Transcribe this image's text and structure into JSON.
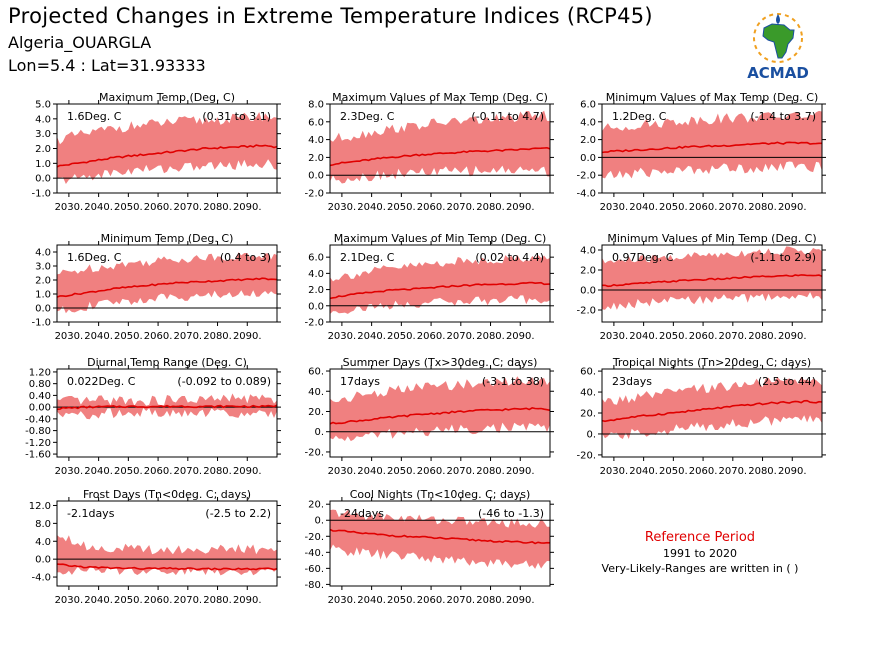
{
  "header": {
    "title": "Projected Changes in Extreme Temperature Indices (RCP45)",
    "location": "Algeria_OUARGLA",
    "coords": "Lon=5.4 : Lat=31.93333"
  },
  "logo": {
    "text": "ACMAD"
  },
  "reference": {
    "title": "Reference Period",
    "years": "1991 to 2020",
    "note": "Very-Likely-Ranges are written in ( )"
  },
  "colors": {
    "band": "#f08080",
    "line": "#e00000",
    "zero": "#000000",
    "logo_green": "#3a9a2a",
    "logo_blue": "#1a4fa0",
    "logo_orange": "#f0a020"
  },
  "chart_data": [
    {
      "type": "area",
      "title": "Maximum Temp (Deg. C)",
      "value": "1.6Deg. C",
      "range": "(0.31 to 3.1)",
      "x_ticks": [
        "2030.",
        "2040.",
        "2050.",
        "2060.",
        "2070.",
        "2080.",
        "2090."
      ],
      "y_ticks": [
        "0.0",
        "1.0",
        "2.0",
        "3.0",
        "4.0",
        "5.0",
        "-1.0"
      ],
      "y_tick_values": [
        0,
        1,
        2,
        3,
        4,
        5,
        -1
      ],
      "ylim": [
        -1,
        5
      ],
      "x": [
        2026,
        2036,
        2046,
        2056,
        2066,
        2076,
        2086,
        2096,
        2100
      ],
      "mean": [
        0.8,
        1.1,
        1.4,
        1.6,
        1.8,
        2.0,
        2.1,
        2.2,
        2.1
      ],
      "low": [
        -0.2,
        0.1,
        0.4,
        0.6,
        0.7,
        0.8,
        0.9,
        1.0,
        0.8
      ],
      "high": [
        2.6,
        3.0,
        3.4,
        3.6,
        3.8,
        3.9,
        4.0,
        4.2,
        4.1
      ]
    },
    {
      "type": "area",
      "title": "Maximum Values of Max Temp (Deg. C)",
      "value": "2.3Deg. C",
      "range": "(-0.11 to 4.7)",
      "x_ticks": [
        "2030.",
        "2040.",
        "2050.",
        "2060.",
        "2070.",
        "2080.",
        "2090."
      ],
      "y_ticks": [
        "-2.0",
        "0.0",
        "2.0",
        "4.0",
        "6.0",
        "8.0"
      ],
      "y_tick_values": [
        -2,
        0,
        2,
        4,
        6,
        8
      ],
      "ylim": [
        -2,
        8
      ],
      "x": [
        2026,
        2036,
        2046,
        2056,
        2066,
        2076,
        2086,
        2096,
        2100
      ],
      "mean": [
        1.2,
        1.6,
        2.0,
        2.3,
        2.5,
        2.7,
        2.8,
        3.0,
        3.0
      ],
      "low": [
        -0.5,
        -0.2,
        0.1,
        0.3,
        0.4,
        0.5,
        0.6,
        0.6,
        0.4
      ],
      "high": [
        4.0,
        4.6,
        5.2,
        5.6,
        6.0,
        6.2,
        6.4,
        6.8,
        6.6
      ]
    },
    {
      "type": "area",
      "title": "Minimum Values of Max Temp (Deg. C)",
      "value": "1.2Deg. C",
      "range": "(-1.4 to 3.7)",
      "x_ticks": [
        "2030.",
        "2040.",
        "2050.",
        "2060.",
        "2070.",
        "2080.",
        "2090."
      ],
      "y_ticks": [
        "-4.0",
        "-2.0",
        "0.0",
        "2.0",
        "4.0",
        "6.0"
      ],
      "y_tick_values": [
        -4,
        -2,
        0,
        2,
        4,
        6
      ],
      "ylim": [
        -4,
        6
      ],
      "x": [
        2026,
        2036,
        2046,
        2056,
        2066,
        2076,
        2086,
        2096,
        2100
      ],
      "mean": [
        0.6,
        0.8,
        1.0,
        1.2,
        1.3,
        1.5,
        1.6,
        1.6,
        1.5
      ],
      "low": [
        -2.2,
        -1.8,
        -1.6,
        -1.4,
        -1.2,
        -1.2,
        -1.0,
        -1.0,
        -1.2
      ],
      "high": [
        3.2,
        3.6,
        3.9,
        4.2,
        4.4,
        4.5,
        4.6,
        4.8,
        4.6
      ]
    },
    {
      "type": "area",
      "title": "Minimum Temp (Deg. C)",
      "value": "1.6Deg. C",
      "range": "(0.4 to 3)",
      "x_ticks": [
        "2030.",
        "2040.",
        "2050.",
        "2060.",
        "2070.",
        "2080.",
        "2090."
      ],
      "y_ticks": [
        "-1.0",
        "0.0",
        "1.0",
        "2.0",
        "3.0",
        "4.0"
      ],
      "y_tick_values": [
        -1,
        0,
        1,
        2,
        3,
        4
      ],
      "ylim": [
        -1,
        4.5
      ],
      "x": [
        2026,
        2036,
        2046,
        2056,
        2066,
        2076,
        2086,
        2096,
        2100
      ],
      "mean": [
        0.8,
        1.1,
        1.4,
        1.6,
        1.8,
        1.9,
        2.0,
        2.1,
        2.0
      ],
      "low": [
        -0.2,
        0.1,
        0.4,
        0.6,
        0.8,
        0.9,
        1.0,
        1.1,
        1.0
      ],
      "high": [
        2.4,
        2.8,
        3.1,
        3.3,
        3.5,
        3.6,
        3.7,
        3.8,
        3.6
      ]
    },
    {
      "type": "area",
      "title": "Maximum Values of Min Temp (Deg. C)",
      "value": "2.1Deg. C",
      "range": "(0.02 to 4.4)",
      "x_ticks": [
        "2030.",
        "2040.",
        "2050.",
        "2060.",
        "2070.",
        "2080.",
        "2090."
      ],
      "y_ticks": [
        "-2.0",
        "0.0",
        "2.0",
        "4.0",
        "6.0"
      ],
      "y_tick_values": [
        -2,
        0,
        2,
        4,
        6
      ],
      "ylim": [
        -2,
        7.5
      ],
      "x": [
        2026,
        2036,
        2046,
        2056,
        2066,
        2076,
        2086,
        2096,
        2100
      ],
      "mean": [
        1.0,
        1.5,
        1.9,
        2.1,
        2.4,
        2.6,
        2.7,
        2.8,
        2.7
      ],
      "low": [
        -0.8,
        -0.3,
        0.0,
        0.3,
        0.5,
        0.6,
        0.7,
        0.8,
        0.5
      ],
      "high": [
        3.4,
        4.0,
        4.6,
        5.0,
        5.4,
        5.6,
        5.8,
        6.0,
        5.8
      ]
    },
    {
      "type": "area",
      "title": "Minimum Values of Min Temp (Deg. C)",
      "value": "0.97Deg. C",
      "range": "(-1.1 to 2.9)",
      "x_ticks": [
        "2030.",
        "2040.",
        "2050.",
        "2060.",
        "2070.",
        "2080.",
        "2090."
      ],
      "y_ticks": [
        "-2.0",
        "0.0",
        "2.0",
        "4.0"
      ],
      "y_tick_values": [
        -2,
        0,
        2,
        4
      ],
      "ylim": [
        -3.2,
        4.5
      ],
      "x": [
        2026,
        2036,
        2046,
        2056,
        2066,
        2076,
        2086,
        2096,
        2100
      ],
      "mean": [
        0.4,
        0.6,
        0.8,
        1.0,
        1.1,
        1.3,
        1.4,
        1.5,
        1.4
      ],
      "low": [
        -1.8,
        -1.4,
        -1.2,
        -1.0,
        -0.9,
        -0.8,
        -0.7,
        -0.6,
        -0.8
      ],
      "high": [
        2.8,
        3.0,
        3.2,
        3.4,
        3.6,
        3.8,
        3.9,
        4.0,
        3.8
      ]
    },
    {
      "type": "area",
      "title": "Diurnal Temp Range (Deg. C)",
      "value": "0.022Deg. C",
      "range": "(-0.092 to 0.089)",
      "x_ticks": [
        "2030.",
        "2040.",
        "2050.",
        "2060.",
        "2070.",
        "2080.",
        "2090."
      ],
      "y_ticks": [
        "-1.60",
        "-1.20",
        "-0.80",
        "-0.40",
        "0.00",
        "0.40",
        "0.80",
        "1.20"
      ],
      "y_tick_values": [
        -1.6,
        -1.2,
        -0.8,
        -0.4,
        0,
        0.4,
        0.8,
        1.2
      ],
      "ylim": [
        -1.7,
        1.3
      ],
      "x": [
        2026,
        2036,
        2046,
        2056,
        2066,
        2076,
        2086,
        2096,
        2100
      ],
      "mean": [
        -0.05,
        0.0,
        0.02,
        0.02,
        0.03,
        0.02,
        0.03,
        0.02,
        0.05
      ],
      "low": [
        -0.3,
        -0.25,
        -0.2,
        -0.2,
        -0.25,
        -0.2,
        -0.2,
        -0.25,
        -0.2
      ],
      "high": [
        0.2,
        0.2,
        0.25,
        0.2,
        0.25,
        0.25,
        0.3,
        0.3,
        0.25
      ]
    },
    {
      "type": "area",
      "title": "Summer Days (Tx>30deg. C; days)",
      "value": "17days",
      "range": "(-3.1 to 38)",
      "x_ticks": [
        "2030.",
        "2040.",
        "2050.",
        "2060.",
        "2070.",
        "2080.",
        "2090."
      ],
      "y_ticks": [
        "-20.",
        "0.",
        "20.",
        "40.",
        "60."
      ],
      "y_tick_values": [
        -20,
        0,
        20,
        40,
        60
      ],
      "ylim": [
        -25,
        62
      ],
      "x": [
        2026,
        2036,
        2046,
        2056,
        2066,
        2076,
        2086,
        2096,
        2100
      ],
      "mean": [
        8,
        11,
        14,
        17,
        19,
        21,
        22,
        23,
        22
      ],
      "low": [
        -8,
        -5,
        -2,
        0,
        2,
        3,
        4,
        5,
        3
      ],
      "high": [
        30,
        36,
        40,
        44,
        46,
        48,
        50,
        52,
        50
      ]
    },
    {
      "type": "area",
      "title": "Tropical Nights (Tn>20deg. C; days)",
      "value": "23days",
      "range": "(2.5 to 44)",
      "x_ticks": [
        "2030.",
        "2040.",
        "2050.",
        "2060.",
        "2070.",
        "2080.",
        "2090."
      ],
      "y_ticks": [
        "-20.",
        "0.",
        "20.",
        "40.",
        "60."
      ],
      "y_tick_values": [
        -20,
        0,
        20,
        40,
        60
      ],
      "ylim": [
        -22,
        62
      ],
      "x": [
        2026,
        2036,
        2046,
        2056,
        2066,
        2076,
        2086,
        2096,
        2100
      ],
      "mean": [
        12,
        16,
        19,
        22,
        25,
        28,
        30,
        31,
        30
      ],
      "low": [
        -4,
        0,
        3,
        6,
        9,
        11,
        13,
        14,
        12
      ],
      "high": [
        30,
        34,
        38,
        42,
        45,
        48,
        50,
        52,
        50
      ]
    },
    {
      "type": "area",
      "title": "Frost Days (Tn<0deg. C; days)",
      "value": "-2.1days",
      "range": "(-2.5 to 2.2)",
      "x_ticks": [
        "2030.",
        "2040.",
        "2050.",
        "2060.",
        "2070.",
        "2080.",
        "2090."
      ],
      "y_ticks": [
        "-4.0",
        "0.0",
        "4.0",
        "8.0",
        "12.0"
      ],
      "y_tick_values": [
        -4,
        0,
        4,
        8,
        12
      ],
      "ylim": [
        -6,
        13
      ],
      "x": [
        2026,
        2036,
        2046,
        2056,
        2066,
        2076,
        2086,
        2096,
        2100
      ],
      "mean": [
        -1.2,
        -1.8,
        -2.0,
        -2.1,
        -2.1,
        -2.2,
        -2.2,
        -2.2,
        -2.2
      ],
      "low": [
        -2.5,
        -2.5,
        -2.5,
        -2.5,
        -2.5,
        -2.5,
        -2.5,
        -2.5,
        -2.5
      ],
      "high": [
        6.0,
        2.8,
        2.4,
        2.2,
        2.2,
        2.2,
        2.2,
        2.2,
        2.2
      ]
    },
    {
      "type": "area",
      "title": "Cool Nights (Tn<10deg. C; days)",
      "value": "-24days",
      "range": "(-46 to -1.3)",
      "x_ticks": [
        "2030.",
        "2040.",
        "2050.",
        "2060.",
        "2070.",
        "2080.",
        "2090."
      ],
      "y_ticks": [
        "-80.",
        "-60.",
        "-40.",
        "-20.",
        "0.",
        "20."
      ],
      "y_tick_values": [
        -80,
        -60,
        -40,
        -20,
        0,
        20
      ],
      "ylim": [
        -82,
        24
      ],
      "x": [
        2026,
        2036,
        2046,
        2056,
        2066,
        2076,
        2086,
        2096,
        2100
      ],
      "mean": [
        -12,
        -16,
        -19,
        -21,
        -23,
        -25,
        -27,
        -28,
        -28
      ],
      "low": [
        -36,
        -40,
        -44,
        -46,
        -50,
        -52,
        -54,
        -56,
        -54
      ],
      "high": [
        10,
        6,
        4,
        2,
        0,
        -2,
        -3,
        -4,
        -4
      ]
    }
  ]
}
